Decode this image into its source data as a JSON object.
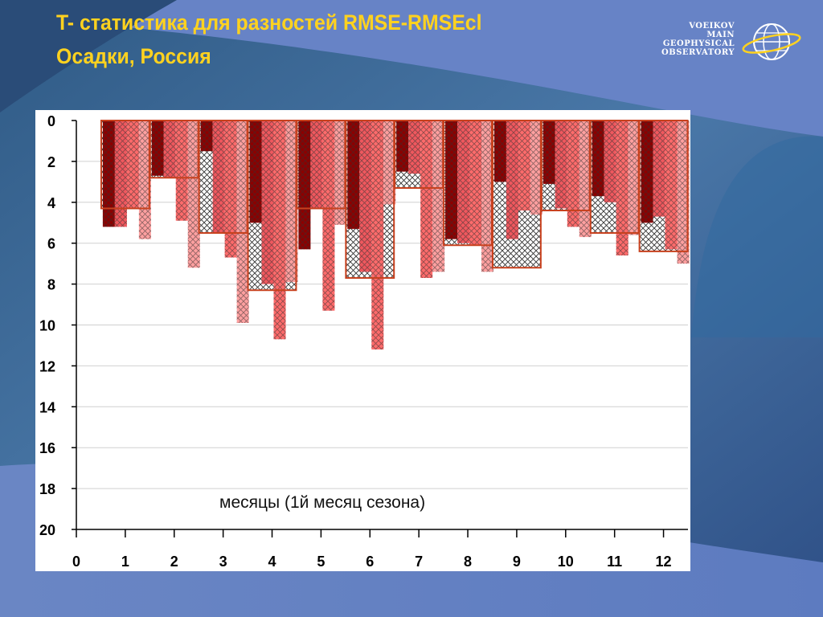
{
  "slide": {
    "title_line1": "T- статистика для разностей  RMSE-RMSEcl",
    "title_line2": "Осадки, Россия"
  },
  "logo": {
    "lines": [
      "VOEIKOV",
      "MAIN",
      "GEOPHYSICAL",
      "OBSERVATORY"
    ]
  },
  "colors": {
    "title": "#ffd21f",
    "series1": "#8b0000",
    "series2": "#f0585e",
    "series3": "#ff6b6b",
    "series4": "#ffa0a0",
    "outline": "#c8411e"
  },
  "chart_data": {
    "type": "bar",
    "y_axis_inverted": true,
    "ylim": [
      0,
      20
    ],
    "yticks": [
      0,
      2,
      4,
      6,
      8,
      10,
      12,
      14,
      16,
      18,
      20
    ],
    "xlim": [
      0,
      12.5
    ],
    "xticks": [
      0,
      1,
      2,
      3,
      4,
      5,
      6,
      7,
      8,
      9,
      10,
      11,
      12
    ],
    "annotation": "месяцы (1й месяц сезона)",
    "grid": true,
    "categories": [
      1,
      2,
      3,
      4,
      5,
      6,
      7,
      8,
      9,
      10,
      11,
      12
    ],
    "series": [
      {
        "values": [
          5.2,
          2.7,
          1.5,
          5.0,
          6.3,
          5.3,
          2.5,
          5.8,
          3.0,
          3.1,
          3.7,
          5.0
        ]
      },
      {
        "values": [
          5.2,
          2.8,
          5.5,
          8.0,
          4.3,
          7.4,
          2.6,
          6.0,
          5.8,
          4.3,
          4.0,
          4.7
        ]
      },
      {
        "values": [
          4.3,
          4.9,
          6.7,
          10.7,
          9.3,
          11.2,
          7.7,
          6.1,
          4.4,
          5.2,
          6.6,
          6.3
        ]
      },
      {
        "values": [
          5.8,
          7.2,
          9.9,
          7.9,
          5.1,
          4.1,
          7.4,
          7.4,
          4.6,
          5.7,
          5.6,
          7.0
        ]
      }
    ],
    "envelope": [
      4.3,
      2.8,
      5.5,
      8.3,
      4.3,
      7.7,
      3.3,
      6.1,
      7.2,
      4.4,
      5.5,
      6.4
    ]
  }
}
